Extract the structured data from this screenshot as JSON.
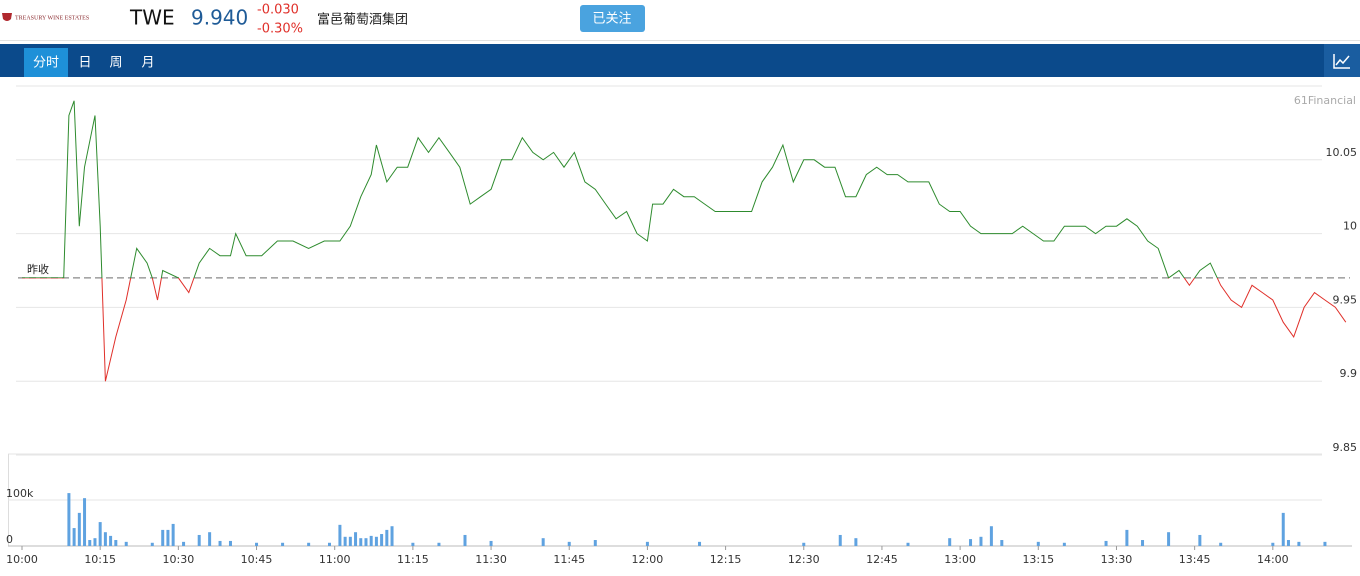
{
  "header": {
    "logo_text": "TREASURY WINE ESTATES",
    "ticker": "TWE",
    "price": "9.940",
    "change": "-0.030",
    "change_pct": "-0.30%",
    "name": "富邑葡萄酒集团",
    "follow_button": "已关注"
  },
  "tabs": [
    "分时",
    "日",
    "周",
    "月"
  ],
  "watermark": "61Financial",
  "chart_data": [
    {
      "type": "line",
      "prev_close": 9.97,
      "prev_close_label": "昨收",
      "up_color": "#2e8b2e",
      "down_color": "#e0302a",
      "xlim": [
        "10:00",
        "14:15"
      ],
      "ylim": [
        9.85,
        10.1
      ],
      "yticks": [
        9.85,
        9.9,
        9.95,
        10,
        10.05
      ],
      "grid": true,
      "x": [
        "10:00",
        "10:08",
        "10:09",
        "10:10",
        "10:11",
        "10:12",
        "10:14",
        "10:15",
        "10:16",
        "10:18",
        "10:20",
        "10:22",
        "10:24",
        "10:25",
        "10:26",
        "10:27",
        "10:30",
        "10:32",
        "10:34",
        "10:36",
        "10:38",
        "10:40",
        "10:41",
        "10:43",
        "10:46",
        "10:49",
        "10:52",
        "10:55",
        "10:58",
        "11:01",
        "11:03",
        "11:05",
        "11:07",
        "11:08",
        "11:10",
        "11:12",
        "11:14",
        "11:16",
        "11:18",
        "11:20",
        "11:22",
        "11:24",
        "11:26",
        "11:28",
        "11:30",
        "11:32",
        "11:34",
        "11:36",
        "11:38",
        "11:40",
        "11:42",
        "11:44",
        "11:46",
        "11:48",
        "11:50",
        "11:52",
        "11:54",
        "11:56",
        "11:58",
        "12:00",
        "12:01",
        "12:03",
        "12:05",
        "12:07",
        "12:09",
        "12:11",
        "12:13",
        "12:15",
        "12:17",
        "12:19",
        "12:20",
        "12:22",
        "12:24",
        "12:26",
        "12:28",
        "12:30",
        "12:32",
        "12:34",
        "12:36",
        "12:38",
        "12:40",
        "12:42",
        "12:44",
        "12:46",
        "12:48",
        "12:50",
        "12:52",
        "12:54",
        "12:56",
        "12:58",
        "13:00",
        "13:02",
        "13:04",
        "13:06",
        "13:08",
        "13:10",
        "13:12",
        "13:14",
        "13:16",
        "13:18",
        "13:20",
        "13:22",
        "13:24",
        "13:26",
        "13:28",
        "13:30",
        "13:32",
        "13:34",
        "13:36",
        "13:38",
        "13:40",
        "13:42",
        "13:44",
        "13:46",
        "13:48",
        "13:50",
        "13:52",
        "13:54",
        "13:56",
        "13:58",
        "14:00",
        "14:02",
        "14:04",
        "14:06",
        "14:08",
        "14:10",
        "14:12",
        "14:14"
      ],
      "values": [
        9.97,
        9.97,
        10.08,
        10.09,
        10.005,
        10.045,
        10.08,
        10.005,
        9.9,
        9.93,
        9.955,
        9.99,
        9.98,
        9.97,
        9.955,
        9.975,
        9.97,
        9.96,
        9.98,
        9.99,
        9.985,
        9.985,
        10.0,
        9.985,
        9.985,
        9.995,
        9.995,
        9.99,
        9.995,
        9.995,
        10.005,
        10.025,
        10.04,
        10.06,
        10.035,
        10.045,
        10.045,
        10.065,
        10.055,
        10.065,
        10.055,
        10.045,
        10.02,
        10.025,
        10.03,
        10.05,
        10.05,
        10.065,
        10.055,
        10.05,
        10.055,
        10.045,
        10.055,
        10.035,
        10.03,
        10.02,
        10.01,
        10.015,
        10.0,
        9.995,
        10.02,
        10.02,
        10.03,
        10.025,
        10.025,
        10.02,
        10.015,
        10.015,
        10.015,
        10.015,
        10.015,
        10.035,
        10.045,
        10.06,
        10.035,
        10.05,
        10.05,
        10.045,
        10.045,
        10.025,
        10.025,
        10.04,
        10.045,
        10.04,
        10.04,
        10.035,
        10.035,
        10.035,
        10.02,
        10.015,
        10.015,
        10.005,
        10.0,
        10.0,
        10.0,
        10.0,
        10.005,
        10.0,
        9.995,
        9.995,
        10.005,
        10.005,
        10.005,
        10.0,
        10.005,
        10.005,
        10.01,
        10.005,
        9.995,
        9.99,
        9.97,
        9.975,
        9.965,
        9.975,
        9.98,
        9.965,
        9.955,
        9.95,
        9.965,
        9.96,
        9.955,
        9.94,
        9.93,
        9.95,
        9.96,
        9.955,
        9.95,
        9.94
      ]
    },
    {
      "type": "bar",
      "color": "#5fa2e0",
      "xlim": [
        "10:00",
        "14:15"
      ],
      "ylim": [
        0,
        200000
      ],
      "yticks": [
        0,
        {
          "value": 100000,
          "label": "100k"
        }
      ],
      "xticks": [
        "10:00",
        "10:15",
        "10:30",
        "10:45",
        "11:00",
        "11:15",
        "11:30",
        "11:45",
        "12:00",
        "12:15",
        "12:30",
        "12:45",
        "13:00",
        "13:15",
        "13:30",
        "13:45",
        "14:00"
      ],
      "x": [
        "10:09",
        "10:10",
        "10:11",
        "10:12",
        "10:13",
        "10:14",
        "10:15",
        "10:16",
        "10:17",
        "10:18",
        "10:20",
        "10:25",
        "10:27",
        "10:28",
        "10:29",
        "10:31",
        "10:34",
        "10:36",
        "10:38",
        "10:40",
        "10:45",
        "10:50",
        "10:55",
        "10:59",
        "11:01",
        "11:02",
        "11:03",
        "11:04",
        "11:05",
        "11:06",
        "11:07",
        "11:08",
        "11:09",
        "11:10",
        "11:11",
        "11:15",
        "11:20",
        "11:25",
        "11:30",
        "11:40",
        "11:45",
        "11:50",
        "12:00",
        "12:10",
        "12:30",
        "12:37",
        "12:40",
        "12:50",
        "12:58",
        "13:02",
        "13:04",
        "13:06",
        "13:08",
        "13:15",
        "13:20",
        "13:28",
        "13:32",
        "13:35",
        "13:40",
        "13:46",
        "13:50",
        "14:00",
        "14:02",
        "14:03",
        "14:05",
        "14:10"
      ],
      "values": [
        115000,
        39000,
        72000,
        104000,
        13000,
        17000,
        52000,
        30000,
        22000,
        13000,
        9000,
        7000,
        35000,
        35000,
        48000,
        9000,
        24000,
        30000,
        11000,
        11000,
        7000,
        7000,
        7000,
        7000,
        46000,
        20000,
        20000,
        30000,
        17000,
        17000,
        22000,
        20000,
        26000,
        35000,
        43000,
        7000,
        7000,
        24000,
        11000,
        17000,
        9000,
        13000,
        9000,
        9000,
        7000,
        24000,
        17000,
        7000,
        17000,
        15000,
        20000,
        43000,
        13000,
        9000,
        7000,
        11000,
        35000,
        13000,
        30000,
        24000,
        7000,
        7000,
        72000,
        13000,
        9000,
        9000
      ]
    }
  ]
}
